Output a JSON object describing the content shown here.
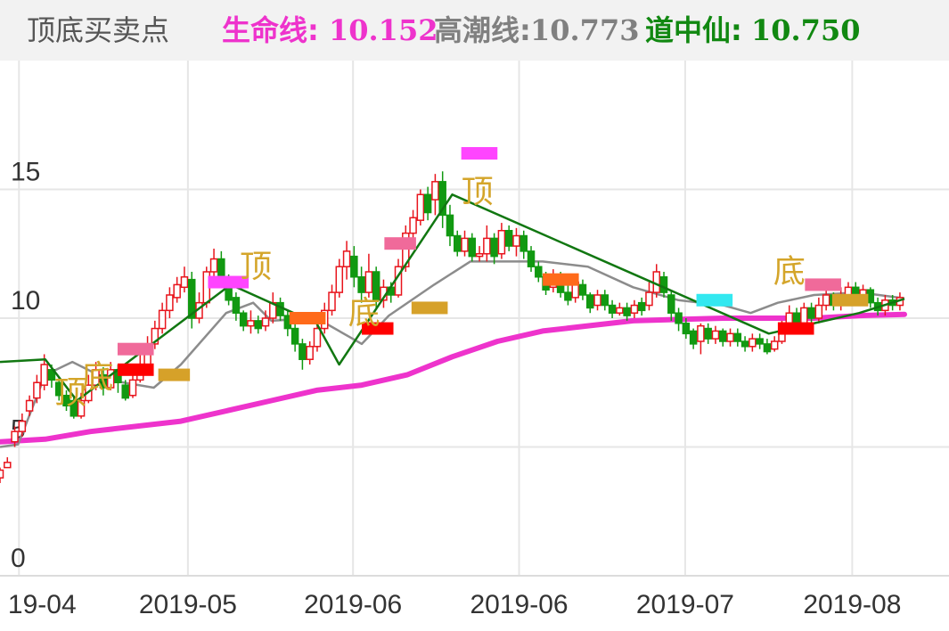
{
  "header": {
    "title": "顶底买卖点",
    "items": [
      {
        "label": "生命线:",
        "value": "10.152",
        "color": "#ee33cc"
      },
      {
        "label": "高潮线:",
        "value": "10.773",
        "color": "#808080"
      },
      {
        "label": "道中仙:",
        "value": "10.750",
        "color": "#008000"
      }
    ]
  },
  "chart_data": {
    "type": "candlestick",
    "x_labels": [
      "19-04",
      "2019-05",
      "2019-06",
      "2019-06",
      "2019-07",
      "2019-08"
    ],
    "y_ticks": [
      "0",
      "5",
      "10",
      "15"
    ],
    "ylim": [
      0,
      20
    ],
    "grid": true,
    "colors": {
      "up": "#e8141c",
      "down": "#119911",
      "life_line": "#ee33cc",
      "climax_line": "#8c8c8c",
      "dao_line": "#117711"
    },
    "candles": [
      [
        3.8,
        4.1,
        3.6,
        4.2
      ],
      [
        4.2,
        4.4,
        4.3,
        4.6
      ],
      [
        5.2,
        5.6,
        5.0,
        5.8
      ],
      [
        5.6,
        6.0,
        5.4,
        6.3
      ],
      [
        6.4,
        6.8,
        6.2,
        7.0
      ],
      [
        6.9,
        7.5,
        6.7,
        7.8
      ],
      [
        7.4,
        8.2,
        7.2,
        8.6
      ],
      [
        8.0,
        7.6,
        7.3,
        8.2
      ],
      [
        7.5,
        7.0,
        6.8,
        7.7
      ],
      [
        7.0,
        6.6,
        6.4,
        7.2
      ],
      [
        6.8,
        6.2,
        6.1,
        7.0
      ],
      [
        6.2,
        6.8,
        6.1,
        7.1
      ],
      [
        6.8,
        7.4,
        6.7,
        7.8
      ],
      [
        7.4,
        8.0,
        7.2,
        8.3
      ],
      [
        7.8,
        7.3,
        7.0,
        8.1
      ],
      [
        7.3,
        8.0,
        7.2,
        8.3
      ],
      [
        8.0,
        7.5,
        7.1,
        8.2
      ],
      [
        7.4,
        6.9,
        6.8,
        7.6
      ],
      [
        7.0,
        7.6,
        6.9,
        7.9
      ],
      [
        7.6,
        8.2,
        7.5,
        8.6
      ],
      [
        8.2,
        9.0,
        8.0,
        9.3
      ],
      [
        9.0,
        9.6,
        8.8,
        9.9
      ],
      [
        9.6,
        10.3,
        9.4,
        10.6
      ],
      [
        10.3,
        10.9,
        10.0,
        11.2
      ],
      [
        10.8,
        11.3,
        10.6,
        11.6
      ],
      [
        11.2,
        11.6,
        11.0,
        12.0
      ],
      [
        11.5,
        10.0,
        9.6,
        11.8
      ],
      [
        10.0,
        10.6,
        9.8,
        11.0
      ],
      [
        10.6,
        11.8,
        10.4,
        12.0
      ],
      [
        11.8,
        12.3,
        11.5,
        12.7
      ],
      [
        12.3,
        11.5,
        11.2,
        12.6
      ],
      [
        11.5,
        10.7,
        10.5,
        11.7
      ],
      [
        10.8,
        10.2,
        9.9,
        11.0
      ],
      [
        10.2,
        9.7,
        9.5,
        10.3
      ],
      [
        9.7,
        9.9,
        9.4,
        10.3
      ],
      [
        9.9,
        9.6,
        9.4,
        10.1
      ],
      [
        9.7,
        10.0,
        9.5,
        10.3
      ],
      [
        10.0,
        10.6,
        9.8,
        11.0
      ],
      [
        10.6,
        10.1,
        9.9,
        10.8
      ],
      [
        10.1,
        9.6,
        9.3,
        10.3
      ],
      [
        9.6,
        9.0,
        8.7,
        9.8
      ],
      [
        9.0,
        8.4,
        8.0,
        9.2
      ],
      [
        8.4,
        8.9,
        8.2,
        9.1
      ],
      [
        8.9,
        9.6,
        8.7,
        9.9
      ],
      [
        9.6,
        10.3,
        9.4,
        10.6
      ],
      [
        10.3,
        11.0,
        10.1,
        11.3
      ],
      [
        11.0,
        12.0,
        10.8,
        12.3
      ],
      [
        12.0,
        12.6,
        11.5,
        13.0
      ],
      [
        12.4,
        11.6,
        11.2,
        12.8
      ],
      [
        11.6,
        11.0,
        10.6,
        12.0
      ],
      [
        11.0,
        11.8,
        10.8,
        12.5
      ],
      [
        11.8,
        10.7,
        10.4,
        12.0
      ],
      [
        10.7,
        11.2,
        10.4,
        11.5
      ],
      [
        11.2,
        10.9,
        10.6,
        11.4
      ],
      [
        10.9,
        12.0,
        10.8,
        12.3
      ],
      [
        12.0,
        13.3,
        11.8,
        13.6
      ],
      [
        13.3,
        13.9,
        13.1,
        14.2
      ],
      [
        13.8,
        14.8,
        13.6,
        15.0
      ],
      [
        14.8,
        14.1,
        13.8,
        15.1
      ],
      [
        14.6,
        15.3,
        14.0,
        15.6
      ],
      [
        15.3,
        14.0,
        13.5,
        15.7
      ],
      [
        14.0,
        13.2,
        12.8,
        14.4
      ],
      [
        13.2,
        12.6,
        12.4,
        13.4
      ],
      [
        12.6,
        13.1,
        12.4,
        13.4
      ],
      [
        13.1,
        12.4,
        12.2,
        13.3
      ],
      [
        12.4,
        12.5,
        12.2,
        12.8
      ],
      [
        12.5,
        13.1,
        12.2,
        13.6
      ],
      [
        13.1,
        12.4,
        12.1,
        13.3
      ],
      [
        12.5,
        13.4,
        12.3,
        13.7
      ],
      [
        13.4,
        12.8,
        12.6,
        13.6
      ],
      [
        12.8,
        13.2,
        12.4,
        13.5
      ],
      [
        13.2,
        12.6,
        12.3,
        13.4
      ],
      [
        12.6,
        12.0,
        11.8,
        12.8
      ],
      [
        12.0,
        11.6,
        11.4,
        12.2
      ],
      [
        11.6,
        11.1,
        10.9,
        11.8
      ],
      [
        11.2,
        11.6,
        11.0,
        11.9
      ],
      [
        11.6,
        11.0,
        10.8,
        11.8
      ],
      [
        11.0,
        10.7,
        10.5,
        11.3
      ],
      [
        10.8,
        11.4,
        10.6,
        11.7
      ],
      [
        11.3,
        10.9,
        10.7,
        11.5
      ],
      [
        10.9,
        10.4,
        10.2,
        11.0
      ],
      [
        10.5,
        10.9,
        10.3,
        11.1
      ],
      [
        10.9,
        10.5,
        10.3,
        11.1
      ],
      [
        10.5,
        10.2,
        10.0,
        10.7
      ],
      [
        10.2,
        10.4,
        10.1,
        10.6
      ],
      [
        10.4,
        10.1,
        9.9,
        10.6
      ],
      [
        10.2,
        10.5,
        10.0,
        10.7
      ],
      [
        10.6,
        10.3,
        10.1,
        10.8
      ],
      [
        10.5,
        11.0,
        10.3,
        11.4
      ],
      [
        11.0,
        11.8,
        10.8,
        12.1
      ],
      [
        11.6,
        11.0,
        10.8,
        11.8
      ],
      [
        10.9,
        10.2,
        9.9,
        11.1
      ],
      [
        10.2,
        9.8,
        9.5,
        10.4
      ],
      [
        9.8,
        9.4,
        9.2,
        10.0
      ],
      [
        9.5,
        9.0,
        8.8,
        9.6
      ],
      [
        9.1,
        9.7,
        8.6,
        9.8
      ],
      [
        9.6,
        9.2,
        9.0,
        9.8
      ],
      [
        9.2,
        9.5,
        9.0,
        9.7
      ],
      [
        9.5,
        9.1,
        8.9,
        9.6
      ],
      [
        9.1,
        9.4,
        8.9,
        9.6
      ],
      [
        9.4,
        9.1,
        8.9,
        9.6
      ],
      [
        9.1,
        8.9,
        8.7,
        9.3
      ],
      [
        8.9,
        9.2,
        8.7,
        9.4
      ],
      [
        9.2,
        9.0,
        8.8,
        9.4
      ],
      [
        9.0,
        8.7,
        8.6,
        9.2
      ],
      [
        8.8,
        9.1,
        8.7,
        9.3
      ],
      [
        9.1,
        9.6,
        9.0,
        9.9
      ],
      [
        9.6,
        10.2,
        9.4,
        10.5
      ],
      [
        10.2,
        9.8,
        9.6,
        10.4
      ],
      [
        9.8,
        10.4,
        9.6,
        10.6
      ],
      [
        10.4,
        10.0,
        9.8,
        10.6
      ],
      [
        10.0,
        10.5,
        9.8,
        10.8
      ],
      [
        10.5,
        10.9,
        10.3,
        11.1
      ],
      [
        10.9,
        10.5,
        10.3,
        11.0
      ],
      [
        10.5,
        10.9,
        10.3,
        11.2
      ],
      [
        10.9,
        11.2,
        10.7,
        11.4
      ],
      [
        11.2,
        10.8,
        10.6,
        11.4
      ],
      [
        10.8,
        11.1,
        10.6,
        11.3
      ],
      [
        11.1,
        10.6,
        10.4,
        11.2
      ],
      [
        10.6,
        10.3,
        10.1,
        10.8
      ],
      [
        10.3,
        10.7,
        10.1,
        10.9
      ],
      [
        10.7,
        10.5,
        10.3,
        10.9
      ],
      [
        10.5,
        10.8,
        10.3,
        11.0
      ]
    ],
    "life_line": [
      [
        0.0,
        5.2
      ],
      [
        0.05,
        5.3
      ],
      [
        0.1,
        5.6
      ],
      [
        0.2,
        6.0
      ],
      [
        0.3,
        6.8
      ],
      [
        0.35,
        7.2
      ],
      [
        0.4,
        7.4
      ],
      [
        0.45,
        7.8
      ],
      [
        0.5,
        8.5
      ],
      [
        0.55,
        9.1
      ],
      [
        0.6,
        9.5
      ],
      [
        0.7,
        9.9
      ],
      [
        0.8,
        10.0
      ],
      [
        0.9,
        10.0
      ],
      [
        0.95,
        10.1
      ],
      [
        1.0,
        10.15
      ]
    ],
    "climax_line": [
      [
        0.0,
        5.0
      ],
      [
        0.02,
        5.1
      ],
      [
        0.05,
        7.8
      ],
      [
        0.08,
        8.3
      ],
      [
        0.12,
        7.6
      ],
      [
        0.17,
        7.3
      ],
      [
        0.2,
        8.2
      ],
      [
        0.25,
        10.2
      ],
      [
        0.28,
        10.6
      ],
      [
        0.3,
        9.9
      ],
      [
        0.35,
        10.0
      ],
      [
        0.4,
        9.0
      ],
      [
        0.43,
        10.1
      ],
      [
        0.48,
        11.3
      ],
      [
        0.52,
        12.2
      ],
      [
        0.55,
        12.2
      ],
      [
        0.6,
        12.2
      ],
      [
        0.65,
        12.0
      ],
      [
        0.7,
        11.2
      ],
      [
        0.75,
        10.7
      ],
      [
        0.8,
        10.5
      ],
      [
        0.83,
        10.2
      ],
      [
        0.86,
        10.6
      ],
      [
        0.9,
        10.9
      ],
      [
        0.95,
        11.0
      ],
      [
        1.0,
        10.77
      ]
    ],
    "dao_line": [
      [
        0.0,
        8.3
      ],
      [
        0.05,
        8.4
      ],
      [
        0.085,
        6.8
      ],
      [
        0.255,
        11.3
      ],
      [
        0.35,
        9.8
      ],
      [
        0.375,
        8.2
      ],
      [
        0.5,
        14.8
      ],
      [
        0.74,
        11.1
      ],
      [
        0.85,
        9.4
      ],
      [
        0.95,
        10.2
      ],
      [
        1.0,
        10.75
      ]
    ],
    "signal_bars": [
      {
        "x": 0.13,
        "y": 8.8,
        "w": 0.04,
        "color": "#f06a9a"
      },
      {
        "x": 0.13,
        "y": 8.0,
        "w": 0.04,
        "color": "#ff0000"
      },
      {
        "x": 0.175,
        "y": 7.8,
        "w": 0.035,
        "color": "#d6a129"
      },
      {
        "x": 0.23,
        "y": 11.4,
        "w": 0.045,
        "color": "#ff44ff"
      },
      {
        "x": 0.32,
        "y": 10.0,
        "w": 0.04,
        "color": "#ff6a1a"
      },
      {
        "x": 0.4,
        "y": 9.6,
        "w": 0.035,
        "color": "#ff0000"
      },
      {
        "x": 0.425,
        "y": 12.9,
        "w": 0.035,
        "color": "#f06a9a"
      },
      {
        "x": 0.455,
        "y": 10.4,
        "w": 0.04,
        "color": "#d6a129"
      },
      {
        "x": 0.51,
        "y": 16.4,
        "w": 0.04,
        "color": "#ff44ff"
      },
      {
        "x": 0.6,
        "y": 11.5,
        "w": 0.04,
        "color": "#ff6a1a"
      },
      {
        "x": 0.77,
        "y": 10.7,
        "w": 0.04,
        "color": "#33e8f0"
      },
      {
        "x": 0.86,
        "y": 9.6,
        "w": 0.04,
        "color": "#ff0000"
      },
      {
        "x": 0.89,
        "y": 11.3,
        "w": 0.04,
        "color": "#f06a9a"
      },
      {
        "x": 0.92,
        "y": 10.7,
        "w": 0.04,
        "color": "#d6a129"
      }
    ],
    "annotations": [
      {
        "text": "顶",
        "x": 0.06,
        "y": 6.7,
        "color": "#d4a52a"
      },
      {
        "text": "底",
        "x": 0.09,
        "y": 7.3,
        "color": "#d4a52a"
      },
      {
        "text": "顶",
        "x": 0.265,
        "y": 11.6,
        "color": "#d4a52a"
      },
      {
        "text": "底",
        "x": 0.385,
        "y": 9.8,
        "color": "#d4a52a"
      },
      {
        "text": "顶",
        "x": 0.51,
        "y": 14.5,
        "color": "#d4a52a"
      },
      {
        "text": "底",
        "x": 0.855,
        "y": 11.4,
        "color": "#d4a52a"
      }
    ]
  }
}
